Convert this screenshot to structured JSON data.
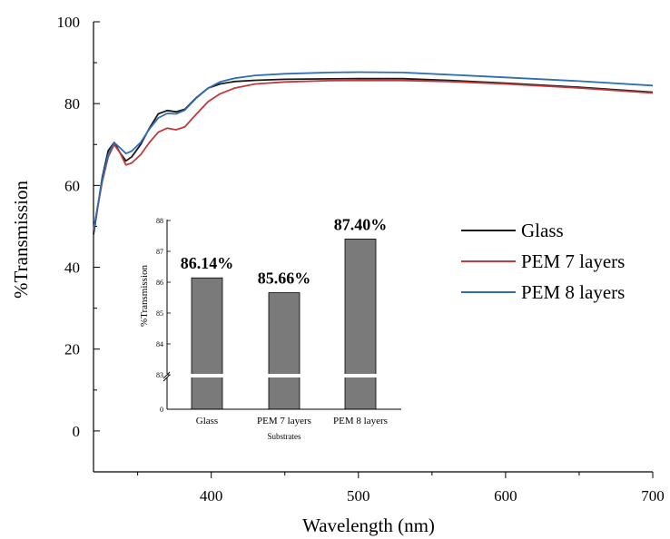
{
  "chart_data": [
    {
      "type": "line",
      "xlabel": "Wavelength (nm)",
      "ylabel": "%Transmission",
      "xlim": [
        320,
        700
      ],
      "ylim": [
        -10,
        100
      ],
      "x_ticks": [
        400,
        500,
        600,
        700
      ],
      "y_ticks": [
        0,
        20,
        40,
        60,
        80,
        100
      ],
      "legend_position": "right",
      "series": [
        {
          "name": "Glass",
          "color": "#1a1a1a",
          "points": [
            [
              320,
              48
            ],
            [
              326,
              62
            ],
            [
              330,
              68.5
            ],
            [
              334,
              70.5
            ],
            [
              338,
              68
            ],
            [
              342,
              66
            ],
            [
              346,
              67
            ],
            [
              352,
              70
            ],
            [
              358,
              74
            ],
            [
              364,
              77.5
            ],
            [
              370,
              78.3
            ],
            [
              376,
              78
            ],
            [
              382,
              78.6
            ],
            [
              390,
              81.5
            ],
            [
              398,
              83.8
            ],
            [
              406,
              84.8
            ],
            [
              416,
              85.4
            ],
            [
              430,
              85.7
            ],
            [
              450,
              85.95
            ],
            [
              480,
              86.05
            ],
            [
              500,
              86.1
            ],
            [
              530,
              86.1
            ],
            [
              560,
              85.7
            ],
            [
              600,
              85
            ],
            [
              650,
              84
            ],
            [
              700,
              82.8
            ]
          ]
        },
        {
          "name": "PEM 7 layers",
          "color": "#c0393b",
          "points": [
            [
              320,
              49
            ],
            [
              326,
              61
            ],
            [
              330,
              67
            ],
            [
              334,
              70
            ],
            [
              338,
              68
            ],
            [
              342,
              65
            ],
            [
              346,
              65.5
            ],
            [
              352,
              67.5
            ],
            [
              358,
              70.5
            ],
            [
              364,
              73
            ],
            [
              370,
              74
            ],
            [
              376,
              73.6
            ],
            [
              382,
              74.3
            ],
            [
              390,
              77.5
            ],
            [
              398,
              80.5
            ],
            [
              406,
              82.4
            ],
            [
              416,
              83.8
            ],
            [
              430,
              84.8
            ],
            [
              450,
              85.3
            ],
            [
              480,
              85.6
            ],
            [
              500,
              85.65
            ],
            [
              530,
              85.65
            ],
            [
              560,
              85.4
            ],
            [
              600,
              84.8
            ],
            [
              650,
              83.8
            ],
            [
              700,
              82.6
            ]
          ]
        },
        {
          "name": "PEM 8 layers",
          "color": "#2f6db5",
          "points": [
            [
              320,
              49
            ],
            [
              326,
              61.5
            ],
            [
              330,
              67.5
            ],
            [
              334,
              70.5
            ],
            [
              338,
              69.2
            ],
            [
              342,
              67.8
            ],
            [
              346,
              68.4
            ],
            [
              352,
              70.5
            ],
            [
              358,
              73.8
            ],
            [
              364,
              76.5
            ],
            [
              370,
              77.6
            ],
            [
              376,
              77.5
            ],
            [
              382,
              78.4
            ],
            [
              390,
              81.4
            ],
            [
              398,
              83.8
            ],
            [
              406,
              85.3
            ],
            [
              416,
              86.2
            ],
            [
              430,
              86.9
            ],
            [
              450,
              87.3
            ],
            [
              480,
              87.6
            ],
            [
              500,
              87.7
            ],
            [
              530,
              87.6
            ],
            [
              560,
              87.1
            ],
            [
              600,
              86.4
            ],
            [
              650,
              85.5
            ],
            [
              700,
              84.4
            ]
          ]
        }
      ]
    },
    {
      "type": "bar",
      "xlabel": "Substrates",
      "ylabel": "%Transmission",
      "categories": [
        "Glass",
        "PEM 7 layers",
        "PEM 8 layers"
      ],
      "values": [
        86.14,
        85.66,
        87.4
      ],
      "data_labels": [
        "86.14%",
        "85.66%",
        "87.40%"
      ],
      "y_ticks": [
        "0",
        "83",
        "84",
        "85",
        "86",
        "87",
        "88"
      ],
      "axis_break": [
        0,
        83
      ],
      "ylim": [
        83,
        88
      ],
      "bar_color": "#7a7a7a"
    }
  ]
}
